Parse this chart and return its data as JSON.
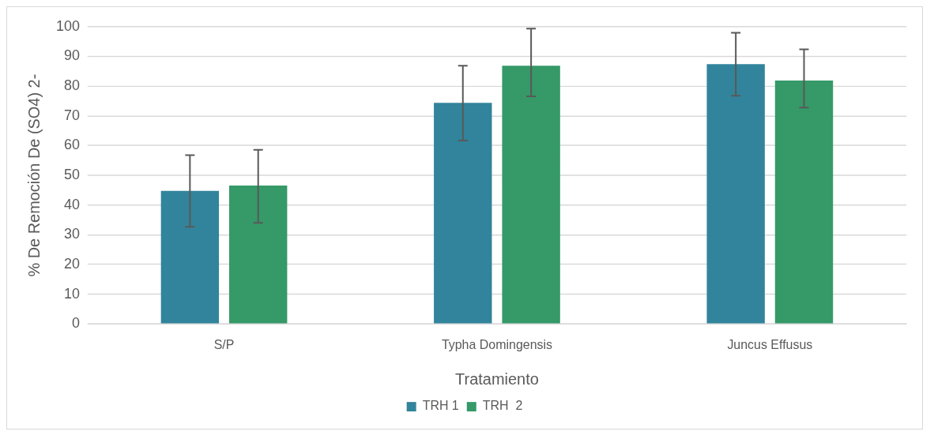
{
  "chart_data": {
    "type": "bar",
    "xlabel": "Tratamiento",
    "ylabel": "% De Remoción De (SO4) 2-",
    "categories": [
      "S/P",
      "Typha Domingensis",
      "Juncus Effusus"
    ],
    "series": [
      {
        "name": "TRH 1",
        "color": "#31849b",
        "values": [
          44.8,
          74.4,
          87.4
        ],
        "errors": [
          [
            32.7,
            56.8
          ],
          [
            61.7,
            86.9
          ],
          [
            76.8,
            98.0
          ]
        ]
      },
      {
        "name": "TRH  2",
        "color": "#359968",
        "values": [
          46.6,
          86.9,
          81.9
        ],
        "errors": [
          [
            34.0,
            58.6
          ],
          [
            76.6,
            99.4
          ],
          [
            72.8,
            92.4
          ]
        ]
      }
    ],
    "ylim": [
      0,
      100
    ],
    "yticks": [
      0,
      10,
      20,
      30,
      40,
      50,
      60,
      70,
      80,
      90,
      100
    ],
    "grid": "y",
    "legend": "bottom"
  }
}
